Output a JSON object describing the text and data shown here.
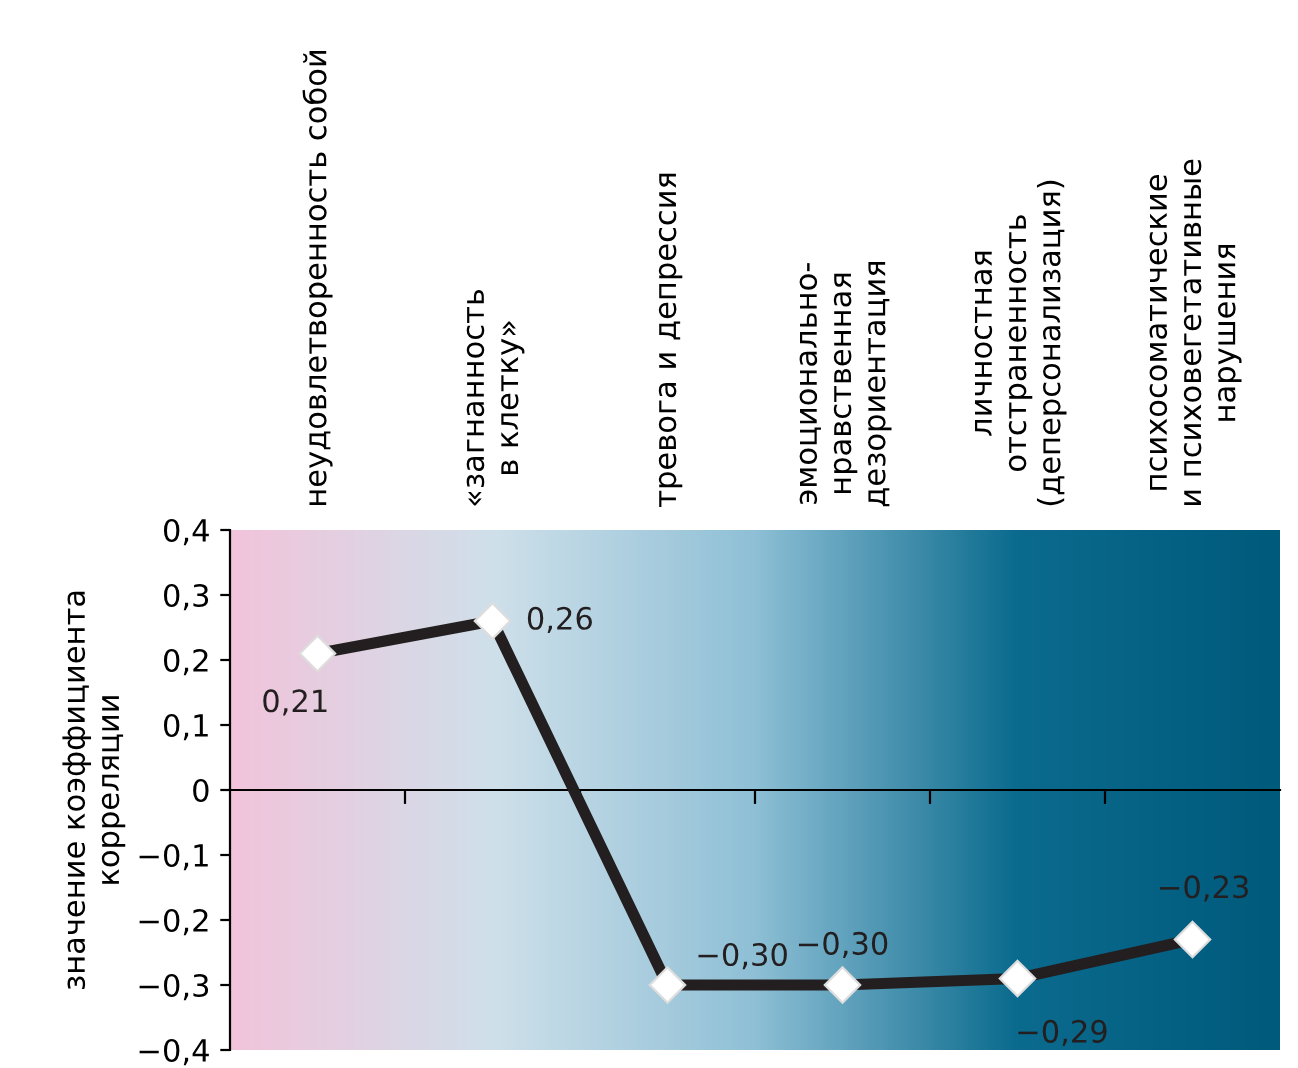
{
  "chart_data": {
    "type": "line",
    "ylabel": "значение коэффициента\nкорреляции",
    "categories": [
      "неудовлетворенность собой",
      "«загнанность\nв клетку»",
      "тревога и депрессия",
      "эмоционально-\nнравственная\nдезориентация",
      "личностная\nотстраненность\n(деперсонализация)",
      "психосоматические\nи психовегетативные\nнарушения"
    ],
    "series": [
      {
        "color": "#231f20",
        "values": [
          0.21,
          0.26,
          -0.3,
          -0.3,
          -0.29,
          -0.23
        ],
        "value_labels": [
          "0,21",
          "0,26",
          "−0,30",
          "−0,30",
          "−0,29",
          "−0,23"
        ]
      }
    ],
    "ylim": [
      -0.4,
      0.4
    ],
    "yticks": [
      {
        "value": -0.4,
        "label": "−0,4"
      },
      {
        "value": -0.3,
        "label": "−0,3"
      },
      {
        "value": -0.2,
        "label": "−0,2"
      },
      {
        "value": -0.1,
        "label": "−0,1"
      },
      {
        "value": 0,
        "label": "0"
      },
      {
        "value": 0.1,
        "label": "0,1"
      },
      {
        "value": 0.2,
        "label": "0,2"
      },
      {
        "value": 0.3,
        "label": "0,3"
      },
      {
        "value": 0.4,
        "label": "0,4"
      }
    ],
    "marker": "diamond",
    "legend": false
  }
}
